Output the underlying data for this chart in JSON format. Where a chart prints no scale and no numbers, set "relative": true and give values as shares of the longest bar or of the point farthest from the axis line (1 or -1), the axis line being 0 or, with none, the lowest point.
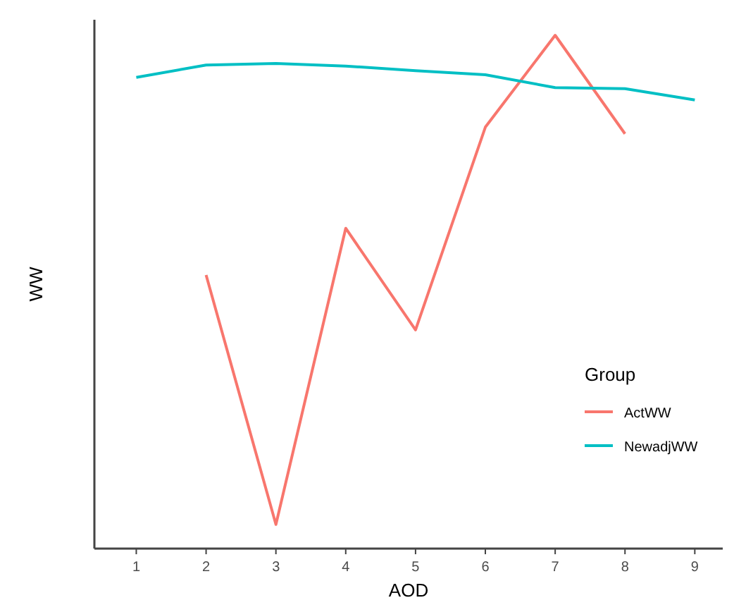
{
  "chart_data": {
    "type": "line",
    "relative": true,
    "xlabel": "AOD",
    "ylabel": "WW",
    "legend_title": "Group",
    "legend": "bottom right",
    "grid": false,
    "xlim": [
      0.4,
      9.4
    ],
    "xticks": [
      1,
      2,
      3,
      4,
      5,
      6,
      7,
      8,
      9
    ],
    "tick_labels": "x",
    "series": [
      {
        "name": "ActWW",
        "color": "#f8766d",
        "x": [
          2,
          3,
          4,
          5,
          6,
          7,
          8
        ],
        "values": [
          0.533,
          0.047,
          0.624,
          0.426,
          0.821,
          1,
          0.808
        ]
      },
      {
        "name": "NewadjWW",
        "color": "#00bfc4",
        "x": [
          1,
          2,
          3,
          4,
          5,
          6,
          7,
          8,
          9
        ],
        "values": [
          0.918,
          0.942,
          0.945,
          0.94,
          0.931,
          0.923,
          0.898,
          0.896,
          0.874
        ]
      }
    ]
  }
}
